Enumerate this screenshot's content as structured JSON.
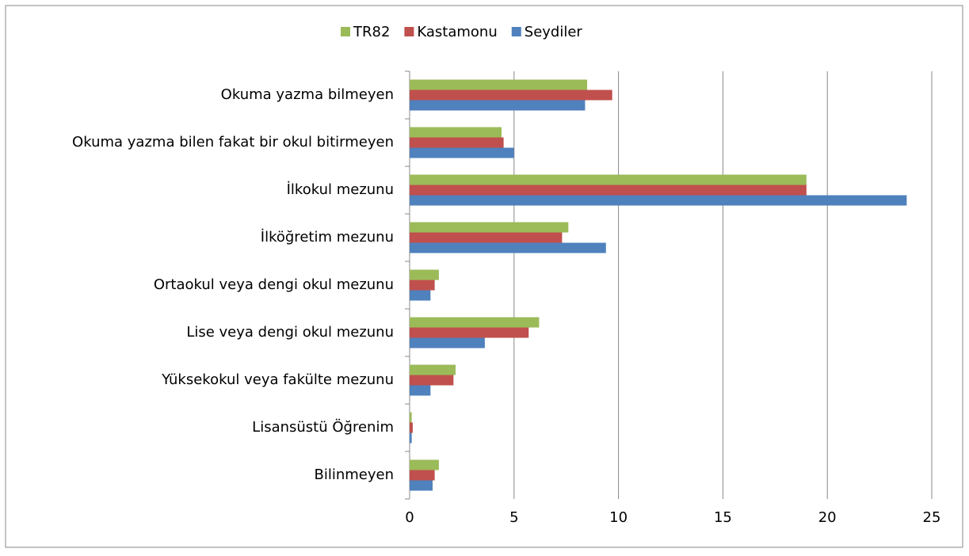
{
  "chart_data": {
    "type": "barh",
    "categories": [
      "Okuma yazma bilmeyen",
      "Okuma yazma bilen fakat bir okul bitirmeyen",
      "İlkokul mezunu",
      "İlköğretim mezunu",
      "Ortaokul veya dengi okul mezunu",
      "Lise veya dengi okul mezunu",
      "Yüksekokul veya fakülte mezunu",
      "Lisansüstü Öğrenim",
      "Bilinmeyen"
    ],
    "series": [
      {
        "name": "TR82",
        "color": "#9bbb59",
        "values": [
          8.5,
          4.4,
          19.0,
          7.6,
          1.4,
          6.2,
          2.2,
          0.1,
          1.4
        ]
      },
      {
        "name": "Kastamonu",
        "color": "#c0504d",
        "values": [
          9.7,
          4.5,
          19.0,
          7.3,
          1.2,
          5.7,
          2.1,
          0.15,
          1.2
        ]
      },
      {
        "name": "Seydiler",
        "color": "#4f81bd",
        "values": [
          8.4,
          5.0,
          23.8,
          9.4,
          1.0,
          3.6,
          1.0,
          0.1,
          1.1
        ]
      }
    ],
    "xlim": [
      0,
      25
    ],
    "xticks": [
      0,
      5,
      10,
      15,
      20,
      25
    ],
    "grid": true,
    "legend": "top"
  }
}
